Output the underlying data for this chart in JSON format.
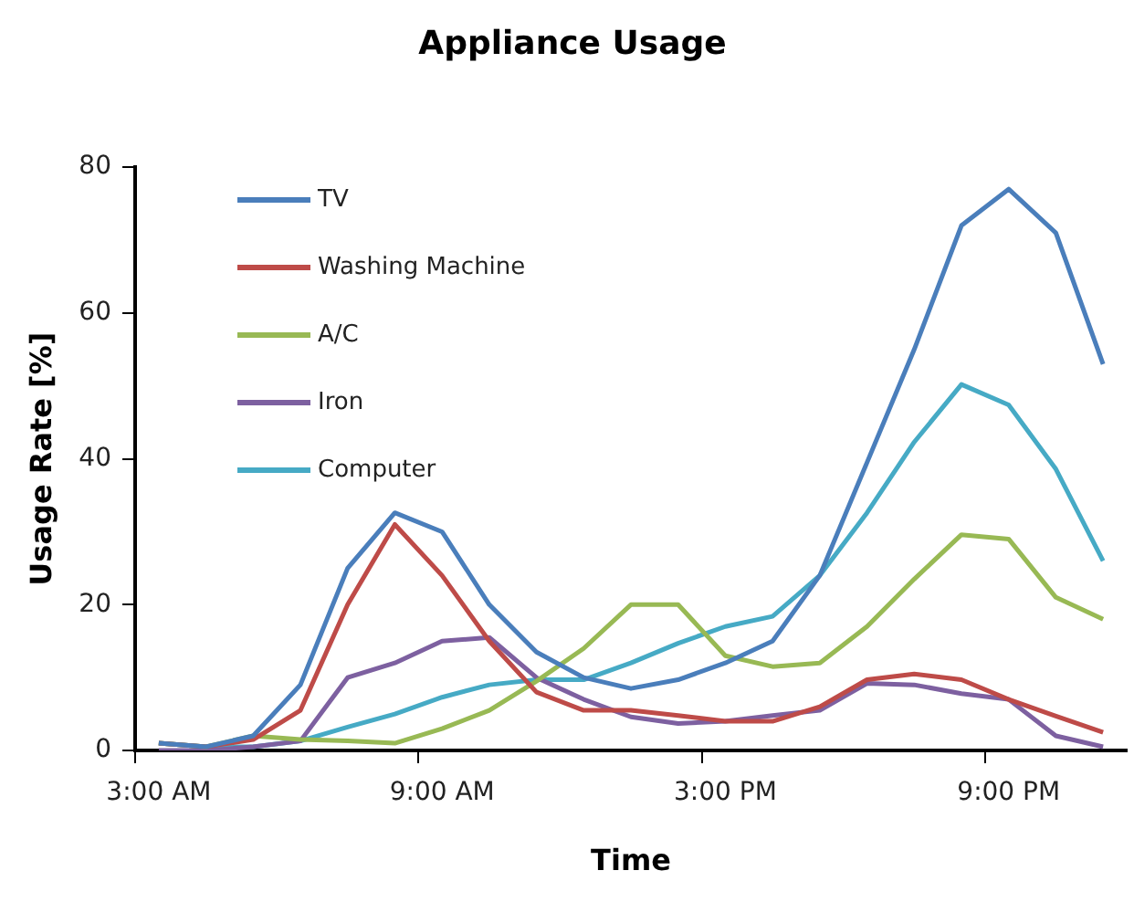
{
  "chart_data": {
    "type": "line",
    "title": "Appliance Usage",
    "xlabel": "Time",
    "ylabel": "Usage Rate [%]",
    "categories": [
      "3:00 AM",
      null,
      null,
      null,
      null,
      null,
      "9:00 AM",
      null,
      null,
      null,
      null,
      null,
      "3:00 PM",
      null,
      null,
      null,
      null,
      null,
      "9:00 PM",
      null,
      null
    ],
    "series": [
      {
        "name": "TV",
        "color": "#4a7ebb",
        "values": [
          1,
          0.5,
          2,
          9,
          25,
          32.6,
          30,
          20,
          13.5,
          10,
          8.5,
          9.7,
          12,
          15,
          24,
          39.5,
          55,
          72,
          77,
          71,
          53
        ]
      },
      {
        "name": "Washing Machine",
        "color": "#be4b48",
        "values": [
          1,
          0.5,
          1.5,
          5.5,
          20,
          31,
          24,
          15,
          8,
          5.5,
          5.5,
          4.8,
          4,
          4,
          6,
          9.7,
          10.5,
          9.7,
          7,
          4.7,
          2.5
        ]
      },
      {
        "name": "A/C",
        "color": "#98b954",
        "values": [
          1,
          0.5,
          2,
          1.5,
          1.3,
          1,
          3,
          5.5,
          9.5,
          14,
          20,
          20,
          13,
          11.5,
          12,
          17,
          23.5,
          29.6,
          29,
          21,
          18
        ]
      },
      {
        "name": "Iron",
        "color": "#7d60a0",
        "values": [
          0,
          0,
          0.5,
          1.3,
          10,
          12,
          15,
          15.5,
          10,
          7,
          4.6,
          3.7,
          4,
          4.8,
          5.5,
          9.2,
          9,
          7.8,
          7,
          2,
          0.5
        ]
      },
      {
        "name": "Computer",
        "color": "#46aac5",
        "values": [
          1,
          0.5,
          0.5,
          1.3,
          3.2,
          5,
          7.3,
          9,
          9.7,
          9.7,
          12,
          14.7,
          17,
          18.4,
          24,
          32.6,
          42.3,
          50.2,
          47.4,
          38.6,
          26
        ]
      }
    ],
    "ylim": [
      0,
      80
    ],
    "yticks": [
      0,
      20,
      40,
      60,
      80
    ],
    "grid": false,
    "legend": "top left",
    "marker": "none",
    "line_style": "solid"
  }
}
